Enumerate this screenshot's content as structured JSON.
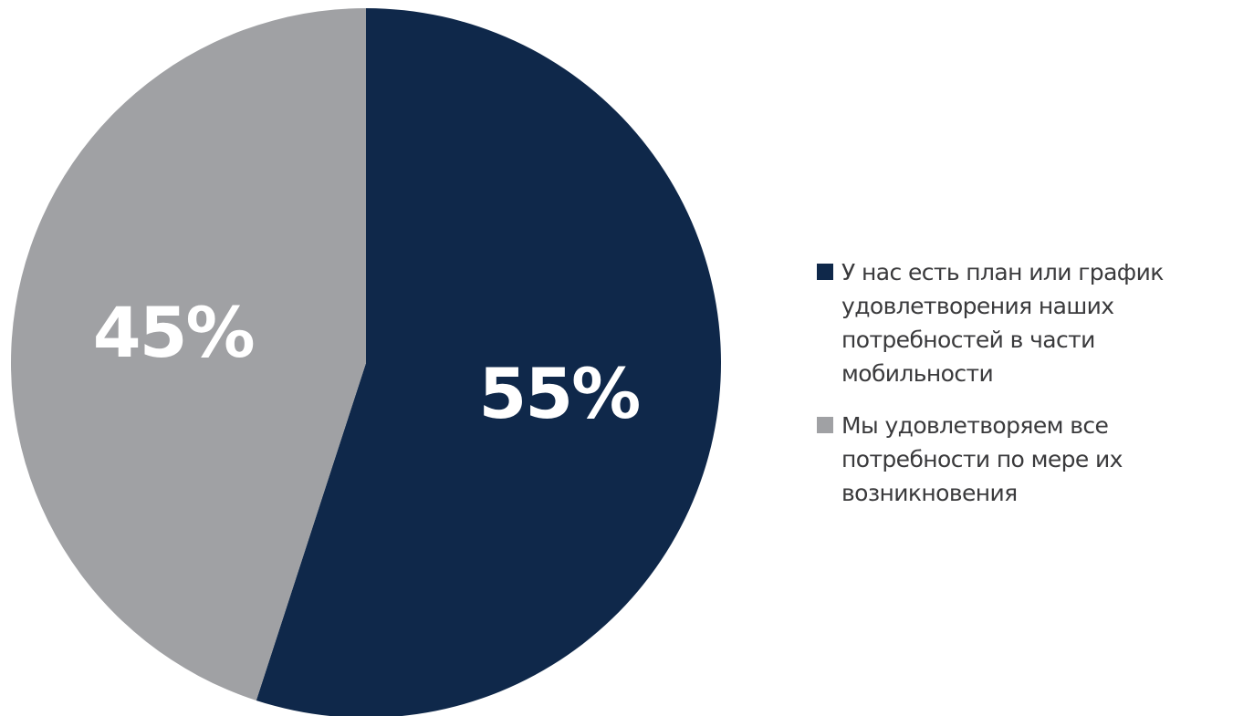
{
  "chart_data": {
    "type": "pie",
    "title": "",
    "start_angle_deg": 0,
    "direction": "clockwise",
    "legend_position": "right",
    "slices": [
      {
        "label": "У нас есть план или график удовлетворения наших потребностей в части мобильности",
        "legend_lines": [
          "У нас есть план или график",
          "удовлетворения наших",
          "потребностей в части мобильности"
        ],
        "value": 55,
        "value_label": "55%",
        "color": "#0f284a"
      },
      {
        "label": "Мы удовлетворяем все потребности по мере их возникновения",
        "legend_lines": [
          "Мы удовлетворяем все",
          "потребности по мере их",
          "возникновения"
        ],
        "value": 45,
        "value_label": "45%",
        "color": "#a0a1a4"
      }
    ]
  }
}
